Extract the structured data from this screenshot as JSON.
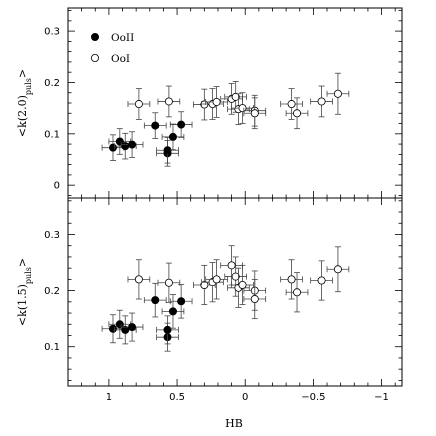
{
  "chart_data": [
    {
      "type": "scatter",
      "panel": "top",
      "ylabel": "<k(2.0)puls>",
      "xlabel": "",
      "xlim": [
        1.3,
        -1.15
      ],
      "ylim": [
        -0.025,
        0.345
      ],
      "yticks": [
        0,
        0.1,
        0.2,
        0.3
      ],
      "ytick_labels": [
        "0",
        "0.1",
        "0.2",
        "0.3"
      ],
      "xticks": [
        1,
        0.5,
        0,
        -0.5,
        -1
      ],
      "grid": false,
      "legend": {
        "placement": "top-left",
        "entries": [
          {
            "label": "OoII",
            "marker": "filled-circle"
          },
          {
            "label": "OoI",
            "marker": "open-circle"
          }
        ]
      },
      "series": [
        {
          "name": "OoII",
          "marker": "filled",
          "points": [
            {
              "x": 0.97,
              "y": 0.073,
              "xerr": 0.08,
              "yerr": 0.025
            },
            {
              "x": 0.92,
              "y": 0.085,
              "xerr": 0.08,
              "yerr": 0.025
            },
            {
              "x": 0.88,
              "y": 0.076,
              "xerr": 0.08,
              "yerr": 0.025
            },
            {
              "x": 0.83,
              "y": 0.079,
              "xerr": 0.08,
              "yerr": 0.025
            },
            {
              "x": 0.66,
              "y": 0.116,
              "xerr": 0.08,
              "yerr": 0.025
            },
            {
              "x": 0.57,
              "y": 0.062,
              "xerr": 0.08,
              "yerr": 0.025
            },
            {
              "x": 0.57,
              "y": 0.068,
              "xerr": 0.08,
              "yerr": 0.025
            },
            {
              "x": 0.53,
              "y": 0.094,
              "xerr": 0.08,
              "yerr": 0.025
            },
            {
              "x": 0.47,
              "y": 0.118,
              "xerr": 0.08,
              "yerr": 0.025
            }
          ]
        },
        {
          "name": "OoI",
          "marker": "open",
          "points": [
            {
              "x": 0.78,
              "y": 0.158,
              "xerr": 0.08,
              "yerr": 0.03
            },
            {
              "x": 0.56,
              "y": 0.163,
              "xerr": 0.08,
              "yerr": 0.03
            },
            {
              "x": 0.3,
              "y": 0.157,
              "xerr": 0.08,
              "yerr": 0.03
            },
            {
              "x": 0.24,
              "y": 0.158,
              "xerr": 0.08,
              "yerr": 0.03
            },
            {
              "x": 0.21,
              "y": 0.162,
              "xerr": 0.08,
              "yerr": 0.03
            },
            {
              "x": 0.1,
              "y": 0.168,
              "xerr": 0.08,
              "yerr": 0.03
            },
            {
              "x": 0.07,
              "y": 0.172,
              "xerr": 0.08,
              "yerr": 0.03
            },
            {
              "x": 0.05,
              "y": 0.148,
              "xerr": 0.08,
              "yerr": 0.03
            },
            {
              "x": 0.02,
              "y": 0.15,
              "xerr": 0.08,
              "yerr": 0.03
            },
            {
              "x": -0.07,
              "y": 0.145,
              "xerr": 0.08,
              "yerr": 0.03
            },
            {
              "x": -0.07,
              "y": 0.14,
              "xerr": 0.08,
              "yerr": 0.03
            },
            {
              "x": -0.34,
              "y": 0.158,
              "xerr": 0.08,
              "yerr": 0.03
            },
            {
              "x": -0.38,
              "y": 0.14,
              "xerr": 0.08,
              "yerr": 0.03
            },
            {
              "x": -0.56,
              "y": 0.163,
              "xerr": 0.08,
              "yerr": 0.03
            },
            {
              "x": -0.68,
              "y": 0.178,
              "xerr": 0.08,
              "yerr": 0.04
            }
          ]
        }
      ]
    },
    {
      "type": "scatter",
      "panel": "bottom",
      "ylabel": "<k(1.5)puls>",
      "xlabel": "HB",
      "xlim": [
        1.3,
        -1.15
      ],
      "ylim": [
        0.03,
        0.365
      ],
      "yticks": [
        0.1,
        0.2,
        0.3
      ],
      "ytick_labels": [
        "0.1",
        "0.2",
        "0.3"
      ],
      "xticks": [
        1,
        0.5,
        0,
        -0.5,
        -1
      ],
      "xtick_labels": [
        "1",
        "0.5",
        "0",
        "−0.5",
        "−1"
      ],
      "grid": false,
      "series": [
        {
          "name": "OoII",
          "marker": "filled",
          "points": [
            {
              "x": 0.97,
              "y": 0.132,
              "xerr": 0.08,
              "yerr": 0.025
            },
            {
              "x": 0.92,
              "y": 0.14,
              "xerr": 0.08,
              "yerr": 0.025
            },
            {
              "x": 0.88,
              "y": 0.13,
              "xerr": 0.08,
              "yerr": 0.025
            },
            {
              "x": 0.83,
              "y": 0.135,
              "xerr": 0.08,
              "yerr": 0.025
            },
            {
              "x": 0.66,
              "y": 0.183,
              "xerr": 0.08,
              "yerr": 0.03
            },
            {
              "x": 0.57,
              "y": 0.117,
              "xerr": 0.08,
              "yerr": 0.025
            },
            {
              "x": 0.57,
              "y": 0.13,
              "xerr": 0.08,
              "yerr": 0.025
            },
            {
              "x": 0.53,
              "y": 0.163,
              "xerr": 0.08,
              "yerr": 0.03
            },
            {
              "x": 0.47,
              "y": 0.181,
              "xerr": 0.08,
              "yerr": 0.03
            }
          ]
        },
        {
          "name": "OoI",
          "marker": "open",
          "points": [
            {
              "x": 0.78,
              "y": 0.22,
              "xerr": 0.08,
              "yerr": 0.035
            },
            {
              "x": 0.56,
              "y": 0.214,
              "xerr": 0.08,
              "yerr": 0.035
            },
            {
              "x": 0.3,
              "y": 0.21,
              "xerr": 0.08,
              "yerr": 0.035
            },
            {
              "x": 0.24,
              "y": 0.215,
              "xerr": 0.08,
              "yerr": 0.035
            },
            {
              "x": 0.21,
              "y": 0.22,
              "xerr": 0.08,
              "yerr": 0.035
            },
            {
              "x": 0.1,
              "y": 0.245,
              "xerr": 0.08,
              "yerr": 0.035
            },
            {
              "x": 0.07,
              "y": 0.225,
              "xerr": 0.08,
              "yerr": 0.035
            },
            {
              "x": 0.05,
              "y": 0.205,
              "xerr": 0.08,
              "yerr": 0.035
            },
            {
              "x": 0.02,
              "y": 0.21,
              "xerr": 0.08,
              "yerr": 0.035
            },
            {
              "x": -0.07,
              "y": 0.2,
              "xerr": 0.08,
              "yerr": 0.035
            },
            {
              "x": -0.07,
              "y": 0.185,
              "xerr": 0.08,
              "yerr": 0.035
            },
            {
              "x": -0.34,
              "y": 0.22,
              "xerr": 0.08,
              "yerr": 0.035
            },
            {
              "x": -0.38,
              "y": 0.197,
              "xerr": 0.08,
              "yerr": 0.035
            },
            {
              "x": -0.56,
              "y": 0.218,
              "xerr": 0.08,
              "yerr": 0.035
            },
            {
              "x": -0.68,
              "y": 0.238,
              "xerr": 0.08,
              "yerr": 0.04
            }
          ]
        }
      ]
    }
  ]
}
